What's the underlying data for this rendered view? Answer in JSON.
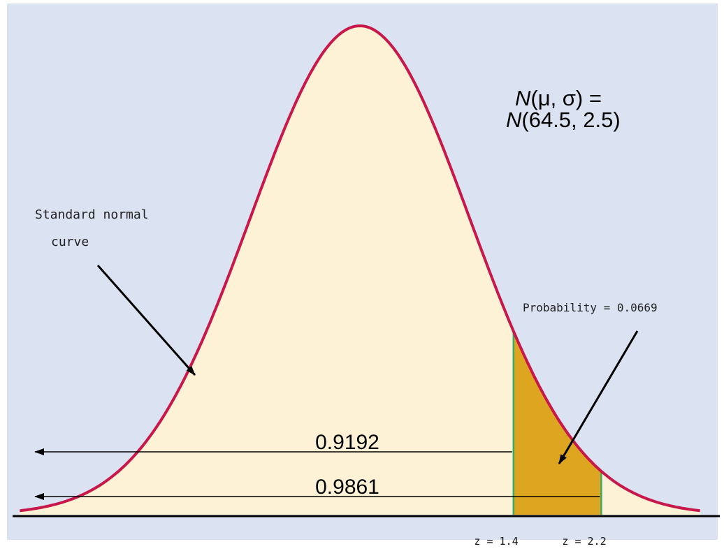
{
  "colors": {
    "background": "#dbe3f2",
    "under_curve_fill": "#fdf2d5",
    "shaded_region_fill": "#dea520",
    "curve_stroke": "#c8174a",
    "boundary_lines": "#3aaa6a",
    "arrows": "#000000"
  },
  "annotations": {
    "standard_normal_label_line1": "Standard normal",
    "standard_normal_label_line2": "curve",
    "probability_label": "Probability = 0.0669",
    "dist_line1_prefix": "N",
    "dist_line1_rest": "(μ, σ) =",
    "dist_line2_prefix": "N",
    "dist_line2_rest": "(64.5, 2.5)",
    "cum_value_1": "0.9192",
    "cum_value_2": "0.9861",
    "z_label_1": "z = 1.4",
    "z_label_2": "z = 2.2"
  },
  "chart_data": {
    "type": "area",
    "distribution": "standard normal",
    "mean": 0,
    "sd": 1,
    "xlim": [
      -3.1,
      3.1
    ],
    "shaded_interval": [
      1.4,
      2.2
    ],
    "shaded_probability": 0.0669,
    "cumulative_probabilities": [
      {
        "z": 1.4,
        "value": 0.9192
      },
      {
        "z": 2.2,
        "value": 0.9861
      }
    ],
    "grid": false,
    "legend": "none"
  }
}
